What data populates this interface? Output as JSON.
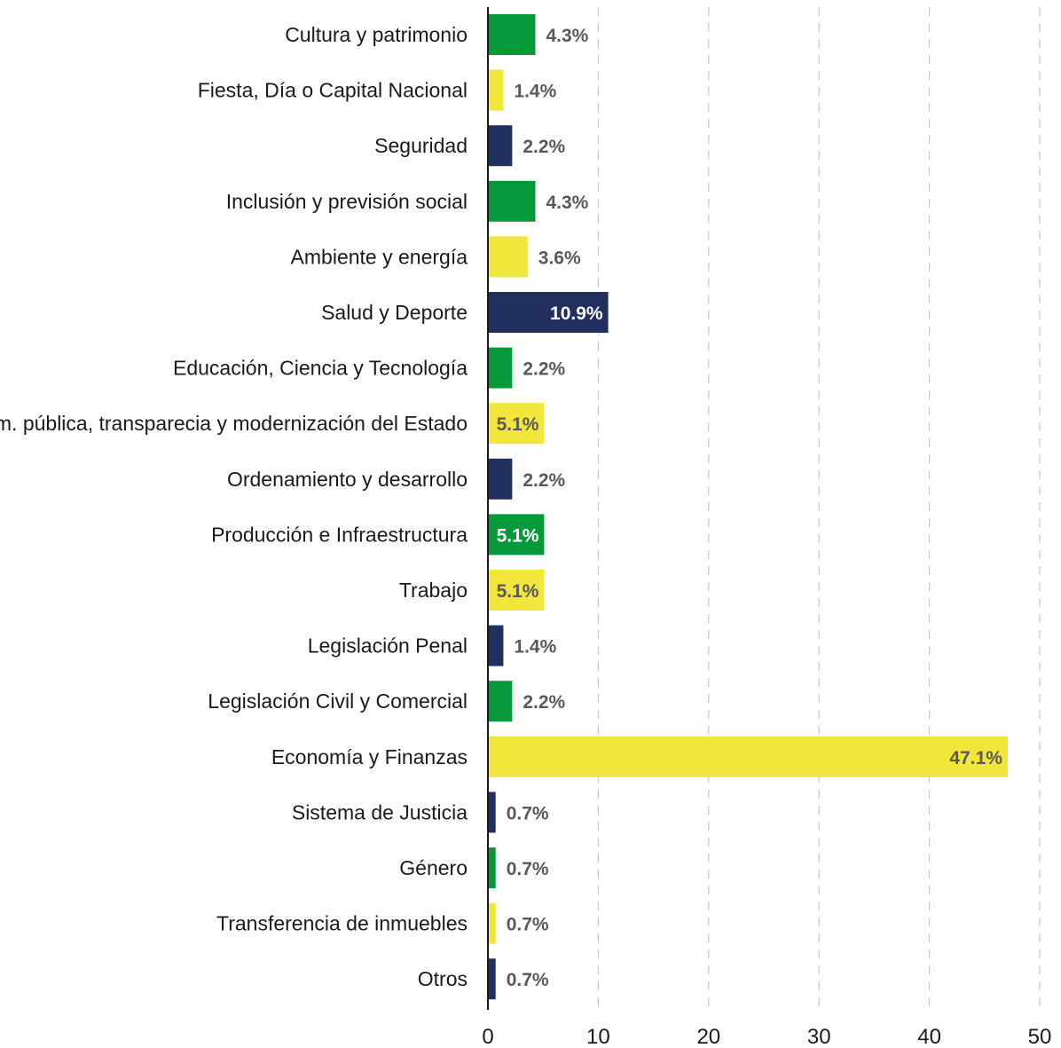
{
  "chart_data": {
    "type": "bar",
    "orientation": "horizontal",
    "categories": [
      "Cultura y patrimonio",
      "Fiesta, Día o Capital Nacional",
      "Seguridad",
      "Inclusión y previsión social",
      "Ambiente y energía",
      "Salud y Deporte",
      "Educación, Ciencia y Tecnología",
      "Adm. pública, transparecia y modernización del Estado",
      "Ordenamiento y desarrollo",
      "Producción e Infraestructura",
      "Trabajo",
      "Legislación Penal",
      "Legislación Civil y Comercial",
      "Economía y Finanzas",
      "Sistema de Justicia",
      "Género",
      "Transferencia de inmuebles",
      "Otros"
    ],
    "values": [
      4.3,
      1.4,
      2.2,
      4.3,
      3.6,
      10.9,
      2.2,
      5.1,
      2.2,
      5.1,
      5.1,
      1.4,
      2.2,
      47.1,
      0.7,
      0.7,
      0.7,
      0.7
    ],
    "data_labels": [
      "4.3%",
      "1.4%",
      "2.2%",
      "4.3%",
      "3.6%",
      "10.9%",
      "2.2%",
      "5.1%",
      "2.2%",
      "5.1%",
      "5.1%",
      "1.4%",
      "2.2%",
      "47.1%",
      "0.7%",
      "0.7%",
      "0.7%",
      "0.7%"
    ],
    "bar_colors": [
      "#06993a",
      "#f0e63c",
      "#22305f",
      "#06993a",
      "#f0e63c",
      "#22305f",
      "#06993a",
      "#f0e63c",
      "#22305f",
      "#06993a",
      "#f0e63c",
      "#22305f",
      "#06993a",
      "#f0e63c",
      "#22305f",
      "#06993a",
      "#f0e63c",
      "#22305f"
    ],
    "label_inside": [
      false,
      false,
      false,
      false,
      false,
      true,
      false,
      true,
      false,
      true,
      true,
      false,
      false,
      true,
      false,
      false,
      false,
      false
    ],
    "xlim": [
      0,
      50
    ],
    "x_ticks": [
      0,
      10,
      20,
      30,
      40,
      50
    ],
    "grid": "vertical dashed",
    "title": "",
    "xlabel": "",
    "ylabel": "",
    "colors": {
      "outside_label": "#595959",
      "inside_label_on_dark": "#ffffff",
      "inside_label_on_light": "#595959",
      "grid": "#c8c8c8",
      "axis": "#1a1a1a"
    }
  }
}
